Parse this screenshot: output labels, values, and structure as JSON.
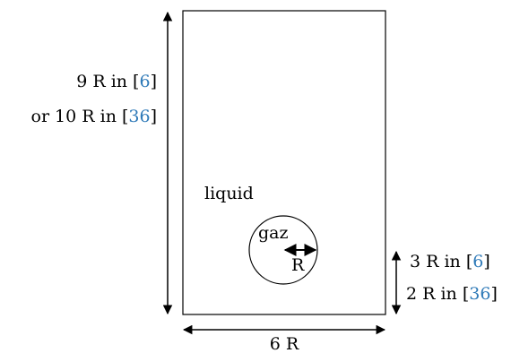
{
  "labels": {
    "liquid": "liquid",
    "gas": "gaz",
    "radius": "R",
    "width": "6 R",
    "height_line1_prefix": "9 R in [",
    "height_line1_ref": "6",
    "height_line1_suffix": "]",
    "height_line2_prefix": "or 10 R in [",
    "height_line2_ref": "36",
    "height_line2_suffix": "]",
    "offset_line1_prefix": "3 R in [",
    "offset_line1_ref": "6",
    "offset_line1_suffix": "]",
    "offset_line2_prefix": "2 R in [",
    "offset_line2_ref": "36",
    "offset_line2_suffix": "]"
  },
  "colors": {
    "citation": "#2f7ab8",
    "stroke": "#000000"
  }
}
